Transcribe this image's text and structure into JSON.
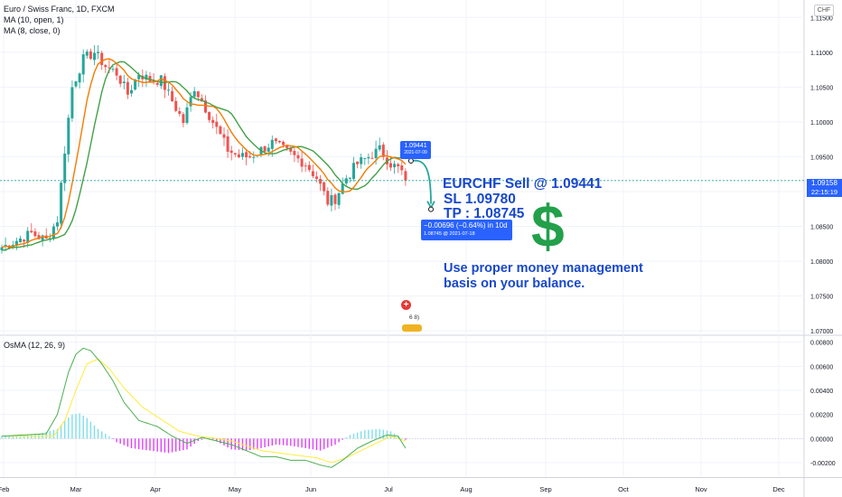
{
  "header": {
    "title": "Euro / Swiss Franc, 1D, FXCM",
    "ma1": "MA (10, open, 1)",
    "ma2": "MA (8, close, 0)",
    "osma": "OsMA (12, 26, 9)",
    "currency": "CHF"
  },
  "colors": {
    "up": "#26a69a",
    "down": "#ef5350",
    "ma_open": "#43a047",
    "ma_close": "#f57c00",
    "macd": "#4caf50",
    "signal": "#ffeb3b",
    "annotation": "#1848cc",
    "dollar": "#22a04a",
    "tag": "#2962ff"
  },
  "annotations": {
    "line1": "EURCHF Sell @ 1.09441",
    "line2": "SL  1.09780",
    "line3": "TP : 1.08745",
    "dollar_sign": "$",
    "note_line1": "Use proper money management",
    "note_line2": "basis on your balance.",
    "entry_price": "1.09441",
    "entry_date": "2021-07-09",
    "measure_change": "−0.00696 (−0.64%) in 10d",
    "measure_target": "1.08745 @ 2021-07-18",
    "last_price": "1.09158",
    "countdown": "22:15:19",
    "events_count": "6 8)"
  },
  "chart_data": [
    {
      "type": "candlestick",
      "title": "Euro / Swiss Franc, 1D, FXCM",
      "x_ticks": [
        "Feb",
        "Mar",
        "Apr",
        "May",
        "Jun",
        "Jul",
        "Aug",
        "Sep",
        "Oct",
        "Nov",
        "Dec"
      ],
      "y_ticks": [
        "1.07000",
        "1.07500",
        "1.08000",
        "1.08500",
        "1.09000",
        "1.09500",
        "1.10000",
        "1.10500",
        "1.11000",
        "1.11500"
      ],
      "ylim": [
        1.0695,
        1.1175
      ],
      "grid": true,
      "series": [
        {
          "name": "MA (10, open, 1)"
        },
        {
          "name": "MA (8, close, 0)"
        }
      ],
      "close_waypoints": [
        [
          0,
          1.082
        ],
        [
          8,
          1.084
        ],
        [
          12,
          1.083
        ],
        [
          15,
          1.086
        ],
        [
          17,
          1.096
        ],
        [
          19,
          1.105
        ],
        [
          22,
          1.109
        ],
        [
          25,
          1.11
        ],
        [
          28,
          1.108
        ],
        [
          31,
          1.107
        ],
        [
          34,
          1.104
        ],
        [
          37,
          1.107
        ],
        [
          40,
          1.106
        ],
        [
          43,
          1.106
        ],
        [
          46,
          1.103
        ],
        [
          49,
          1.1
        ],
        [
          52,
          1.105
        ],
        [
          55,
          1.102
        ],
        [
          58,
          1.099
        ],
        [
          61,
          1.096
        ],
        [
          64,
          1.095
        ],
        [
          67,
          1.095
        ],
        [
          70,
          1.096
        ],
        [
          73,
          1.097
        ],
        [
          76,
          1.096
        ],
        [
          79,
          1.095
        ],
        [
          82,
          1.094
        ],
        [
          85,
          1.092
        ],
        [
          88,
          1.0885
        ],
        [
          90,
          1.089
        ],
        [
          93,
          1.092
        ],
        [
          96,
          1.094
        ],
        [
          99,
          1.095
        ],
        [
          102,
          1.096
        ],
        [
          105,
          1.094
        ],
        [
          107,
          1.0933
        ],
        [
          108,
          1.0928
        ],
        [
          109,
          1.09158
        ]
      ]
    },
    {
      "type": "line",
      "title": "OsMA (12, 26, 9)",
      "y_ticks": [
        "-0.00200",
        "0.00000",
        "0.00200",
        "0.00400",
        "0.00600",
        "0.00800"
      ],
      "ylim": [
        -0.0032,
        0.0085
      ],
      "osma_waypoints": [
        [
          0,
          0.0002
        ],
        [
          10,
          0.0004
        ],
        [
          15,
          0.0008
        ],
        [
          17,
          0.0015
        ],
        [
          19,
          0.002
        ],
        [
          21,
          0.0021
        ],
        [
          23,
          0.0017
        ],
        [
          26,
          0.0008
        ],
        [
          29,
          0.0002
        ],
        [
          31,
          -0.0003
        ],
        [
          35,
          -0.0008
        ],
        [
          40,
          -0.001
        ],
        [
          45,
          -0.0012
        ],
        [
          50,
          -0.0009
        ],
        [
          53,
          -0.0002
        ],
        [
          56,
          0.0001
        ],
        [
          59,
          -0.0004
        ],
        [
          62,
          -0.0009
        ],
        [
          66,
          -0.001
        ],
        [
          70,
          -0.0008
        ],
        [
          74,
          -0.0005
        ],
        [
          78,
          -0.0006
        ],
        [
          82,
          -0.0008
        ],
        [
          86,
          -0.001
        ],
        [
          90,
          -0.0005
        ],
        [
          94,
          0.0003
        ],
        [
          98,
          0.0007
        ],
        [
          102,
          0.0008
        ],
        [
          105,
          0.0006
        ],
        [
          107,
          0.0002
        ],
        [
          109,
          -0.0001
        ]
      ],
      "macd_waypoints": [
        [
          0,
          0.0002
        ],
        [
          12,
          0.0004
        ],
        [
          15,
          0.002
        ],
        [
          18,
          0.0055
        ],
        [
          20,
          0.007
        ],
        [
          22,
          0.0075
        ],
        [
          24,
          0.0073
        ],
        [
          27,
          0.0062
        ],
        [
          30,
          0.0048
        ],
        [
          33,
          0.003
        ],
        [
          37,
          0.0015
        ],
        [
          42,
          0.001
        ],
        [
          46,
          0.0002
        ],
        [
          50,
          -0.0004
        ],
        [
          54,
          0.0001
        ],
        [
          58,
          -0.0002
        ],
        [
          62,
          -0.0005
        ],
        [
          66,
          -0.001
        ],
        [
          70,
          -0.0015
        ],
        [
          74,
          -0.0015
        ],
        [
          78,
          -0.0018
        ],
        [
          82,
          -0.0018
        ],
        [
          86,
          -0.0022
        ],
        [
          89,
          -0.0024
        ],
        [
          92,
          -0.0018
        ],
        [
          96,
          -0.0008
        ],
        [
          100,
          -0.0002
        ],
        [
          104,
          0.0003
        ],
        [
          107,
          0.0002
        ],
        [
          109,
          -0.0008
        ]
      ],
      "signal_waypoints": [
        [
          0,
          0.0002
        ],
        [
          14,
          0.0002
        ],
        [
          17,
          0.0015
        ],
        [
          20,
          0.004
        ],
        [
          23,
          0.0062
        ],
        [
          26,
          0.0066
        ],
        [
          29,
          0.0058
        ],
        [
          33,
          0.0042
        ],
        [
          38,
          0.0026
        ],
        [
          43,
          0.0016
        ],
        [
          48,
          0.0006
        ],
        [
          53,
          0.0002
        ],
        [
          58,
          0.0
        ],
        [
          62,
          -0.0002
        ],
        [
          66,
          -0.0006
        ],
        [
          70,
          -0.001
        ],
        [
          75,
          -0.0012
        ],
        [
          80,
          -0.0014
        ],
        [
          85,
          -0.0016
        ],
        [
          89,
          -0.002
        ],
        [
          93,
          -0.0016
        ],
        [
          97,
          -0.001
        ],
        [
          101,
          -0.0004
        ],
        [
          105,
          0.0002
        ],
        [
          109,
          -0.0002
        ]
      ]
    }
  ]
}
